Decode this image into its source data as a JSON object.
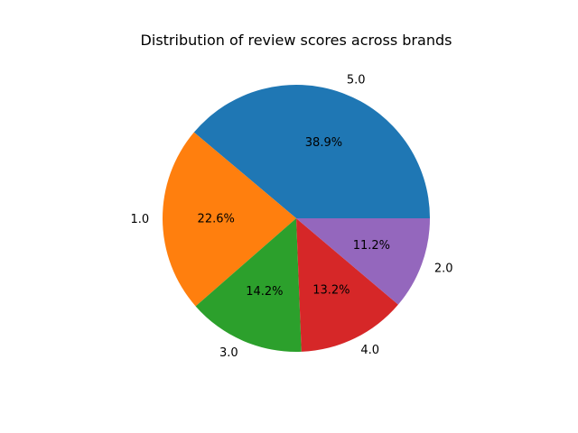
{
  "chart_data": {
    "type": "pie",
    "title": "Distribution of review scores across brands",
    "start_angle_deg": 0,
    "direction": "counterclockwise",
    "slices": [
      {
        "label": "5.0",
        "value": 38.9,
        "pct_label": "38.9%",
        "color": "#1f77b4"
      },
      {
        "label": "1.0",
        "value": 22.6,
        "pct_label": "22.6%",
        "color": "#ff7f0e"
      },
      {
        "label": "3.0",
        "value": 14.2,
        "pct_label": "14.2%",
        "color": "#2ca02c"
      },
      {
        "label": "4.0",
        "value": 13.2,
        "pct_label": "13.2%",
        "color": "#d62728"
      },
      {
        "label": "2.0",
        "value": 11.2,
        "pct_label": "11.2%",
        "color": "#9467bd"
      }
    ]
  }
}
